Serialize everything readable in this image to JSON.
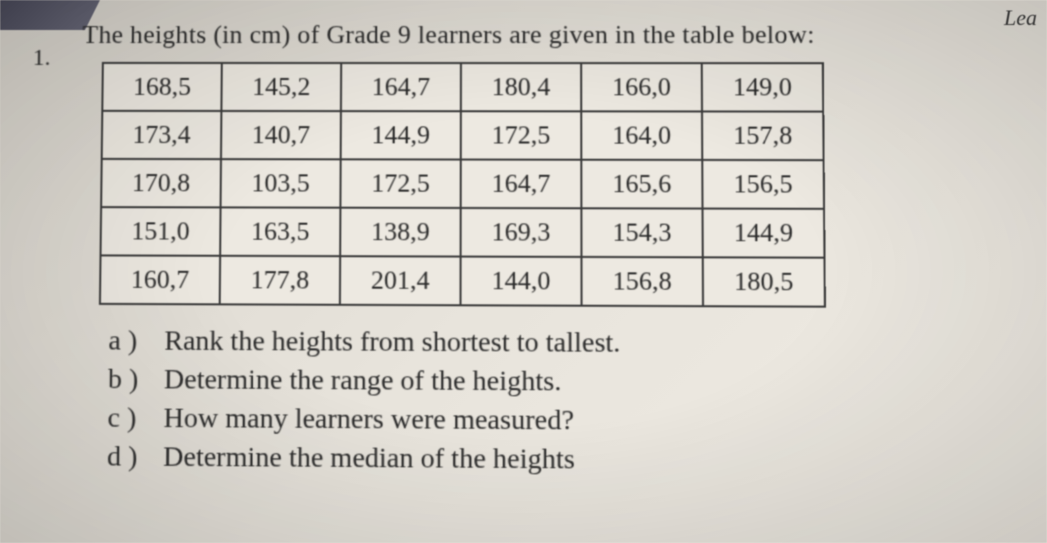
{
  "cornerText": "Lea",
  "questionNumber": "1.",
  "questionText": "The heights (in cm) of Grade 9 learners are given in the table below:",
  "table": {
    "rows": [
      [
        "168,5",
        "145,2",
        "164,7",
        "180,4",
        "166,0",
        "149,0"
      ],
      [
        "173,4",
        "140,7",
        "144,9",
        "172,5",
        "164,0",
        "157,8"
      ],
      [
        "170,8",
        "103,5",
        "172,5",
        "164,7",
        "165,6",
        "156,5"
      ],
      [
        "151,0",
        "163,5",
        "138,9",
        "169,3",
        "154,3",
        "144,9"
      ],
      [
        "160,7",
        "177,8",
        "201,4",
        "144,0",
        "156,8",
        "180,5"
      ]
    ],
    "columns": 6,
    "cellFontSize": 26,
    "borderColor": "#3a3a3a",
    "borderWidth": 2
  },
  "subQuestions": [
    {
      "letter": "a )",
      "text": "Rank the heights from shortest to tallest."
    },
    {
      "letter": "b )",
      "text": "Determine the range of the heights."
    },
    {
      "letter": "c )",
      "text": "How many learners were measured?"
    },
    {
      "letter": "d )",
      "text": "Determine the median of the heights"
    }
  ],
  "styling": {
    "backgroundColor": "#e8e4dc",
    "textColor": "#2a2a2a",
    "fontFamily": "Georgia, serif",
    "questionFontSize": 26,
    "subQuestionFontSize": 28
  }
}
